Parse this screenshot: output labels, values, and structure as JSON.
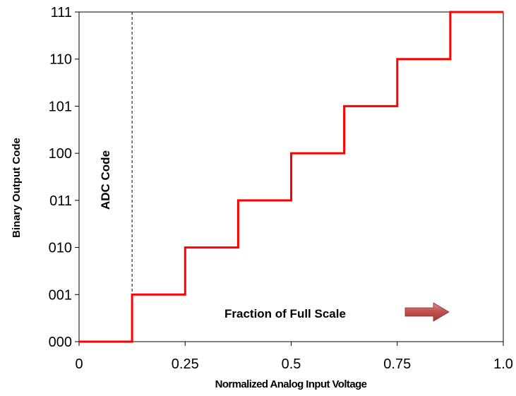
{
  "chart_data": {
    "type": "line",
    "step": true,
    "title": "",
    "xlabel": "Normalized Analog Input Voltage",
    "ylabel": "Binary Output Code",
    "xlim": [
      0,
      1.0
    ],
    "ylim": [
      0,
      7
    ],
    "xticks": [
      0,
      0.25,
      0.5,
      0.75,
      1.0
    ],
    "xtick_labels": [
      "0",
      "0.25",
      "0.5",
      "0.75",
      "1.0"
    ],
    "yticks": [
      0,
      1,
      2,
      3,
      4,
      5,
      6,
      7
    ],
    "ytick_labels": [
      "000",
      "001",
      "010",
      "011",
      "100",
      "101",
      "110",
      "111"
    ],
    "grid": false,
    "series": [
      {
        "color": "#ff0000",
        "x": [
          0,
          0.125,
          0.125,
          0.25,
          0.25,
          0.375,
          0.375,
          0.5,
          0.5,
          0.625,
          0.625,
          0.75,
          0.75,
          0.875,
          0.875,
          1.0
        ],
        "y": [
          0,
          0,
          1,
          1,
          2,
          2,
          3,
          3,
          4,
          4,
          5,
          5,
          6,
          6,
          7,
          7
        ]
      }
    ],
    "reference_line": {
      "x": 0.125,
      "style": "dashed",
      "label": "ADC Code"
    },
    "annotation": {
      "text": "Fraction of Full Scale",
      "arrow_color": "#c0504d"
    }
  }
}
